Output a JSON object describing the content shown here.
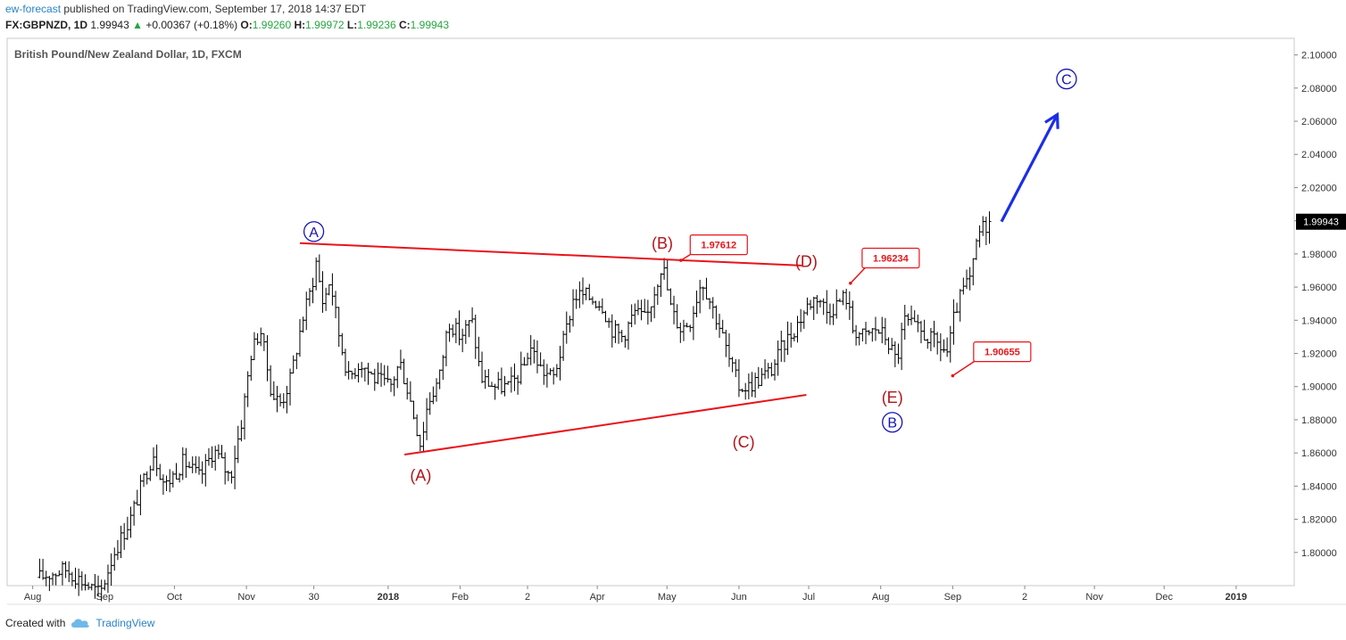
{
  "header": {
    "author": "ew-forecast",
    "published": "published on TradingView.com, September 17, 2018 14:37 EDT",
    "symbol": "FX:GBPNZD, 1D",
    "last": "1.99943",
    "change_arrow": "▲",
    "change": "+0.00367 (+0.18%)",
    "o_label": "O:",
    "o_value": "1.99260",
    "h_label": "H:",
    "h_value": "1.99972",
    "l_label": "L:",
    "l_value": "1.99236",
    "c_label": "C:",
    "c_value": "1.99943"
  },
  "footer": {
    "created_with": "Created with",
    "brand": "TradingView",
    "brand_icon": "tradingview-cloud-icon"
  },
  "colors": {
    "trendline": "#e8141a",
    "wave_red": "#b3141a",
    "wave_blue": "#1414b4",
    "arrow": "#1a2ee8",
    "bars": "#000000",
    "price_tag_bg": "#000000",
    "callout_border": "#e8141a"
  },
  "chart_data": {
    "type": "ohlc",
    "title": "British Pound/New Zealand Dollar, 1D, FXCM",
    "ylim": [
      1.78,
      2.11
    ],
    "y_ticks": [
      "2.10000",
      "2.08000",
      "2.06000",
      "2.04000",
      "2.02000",
      "2.00000",
      "1.98000",
      "1.96000",
      "1.94000",
      "1.92000",
      "1.90000",
      "1.88000",
      "1.86000",
      "1.84000",
      "1.82000",
      "1.80000"
    ],
    "x_ticks": [
      {
        "label": "Aug",
        "date": "2017-08-01",
        "bold": false
      },
      {
        "label": "Sep",
        "date": "2017-09-01",
        "bold": false
      },
      {
        "label": "Oct",
        "date": "2017-10-01",
        "bold": false
      },
      {
        "label": "Nov",
        "date": "2017-11-01",
        "bold": false
      },
      {
        "label": "30",
        "date": "2017-11-30",
        "bold": false
      },
      {
        "label": "2018",
        "date": "2018-01-01",
        "bold": true
      },
      {
        "label": "Feb",
        "date": "2018-02-01",
        "bold": false
      },
      {
        "label": "2",
        "date": "2018-03-02",
        "bold": false
      },
      {
        "label": "Apr",
        "date": "2018-04-01",
        "bold": false
      },
      {
        "label": "May",
        "date": "2018-05-01",
        "bold": false
      },
      {
        "label": "Jun",
        "date": "2018-06-01",
        "bold": false
      },
      {
        "label": "Jul",
        "date": "2018-07-01",
        "bold": false
      },
      {
        "label": "Aug",
        "date": "2018-08-01",
        "bold": false
      },
      {
        "label": "Sep",
        "date": "2018-09-01",
        "bold": false
      },
      {
        "label": "2",
        "date": "2018-10-02",
        "bold": false
      },
      {
        "label": "Nov",
        "date": "2018-11-01",
        "bold": false
      },
      {
        "label": "Dec",
        "date": "2018-12-01",
        "bold": false
      },
      {
        "label": "2019",
        "date": "2019-01-01",
        "bold": true
      }
    ],
    "price_keypoints": [
      [
        "2017-08-04",
        1.785
      ],
      [
        "2017-08-15",
        1.79
      ],
      [
        "2017-08-30",
        1.775
      ],
      [
        "2017-09-05",
        1.8
      ],
      [
        "2017-09-12",
        1.82
      ],
      [
        "2017-09-18",
        1.845
      ],
      [
        "2017-09-22",
        1.86
      ],
      [
        "2017-09-27",
        1.84
      ],
      [
        "2017-10-05",
        1.855
      ],
      [
        "2017-10-12",
        1.845
      ],
      [
        "2017-10-18",
        1.862
      ],
      [
        "2017-10-25",
        1.845
      ],
      [
        "2017-10-30",
        1.88
      ],
      [
        "2017-11-03",
        1.92
      ],
      [
        "2017-11-07",
        1.935
      ],
      [
        "2017-11-12",
        1.895
      ],
      [
        "2017-11-16",
        1.89
      ],
      [
        "2017-11-20",
        1.905
      ],
      [
        "2017-11-25",
        1.94
      ],
      [
        "2017-11-29",
        1.96
      ],
      [
        "2017-12-01",
        1.975
      ],
      [
        "2017-12-04",
        1.95
      ],
      [
        "2017-12-07",
        1.965
      ],
      [
        "2017-12-11",
        1.93
      ],
      [
        "2017-12-15",
        1.905
      ],
      [
        "2017-12-20",
        1.915
      ],
      [
        "2017-12-26",
        1.905
      ],
      [
        "2018-01-02",
        1.9
      ],
      [
        "2018-01-06",
        1.915
      ],
      [
        "2018-01-10",
        1.895
      ],
      [
        "2018-01-15",
        1.865
      ],
      [
        "2018-01-18",
        1.89
      ],
      [
        "2018-01-23",
        1.905
      ],
      [
        "2018-01-27",
        1.94
      ],
      [
        "2018-02-01",
        1.93
      ],
      [
        "2018-02-06",
        1.94
      ],
      [
        "2018-02-10",
        1.905
      ],
      [
        "2018-02-16",
        1.9
      ],
      [
        "2018-02-22",
        1.9
      ],
      [
        "2018-02-28",
        1.91
      ],
      [
        "2018-03-03",
        1.925
      ],
      [
        "2018-03-08",
        1.91
      ],
      [
        "2018-03-13",
        1.905
      ],
      [
        "2018-03-18",
        1.93
      ],
      [
        "2018-03-22",
        1.955
      ],
      [
        "2018-03-27",
        1.955
      ],
      [
        "2018-04-03",
        1.95
      ],
      [
        "2018-04-07",
        1.935
      ],
      [
        "2018-04-12",
        1.93
      ],
      [
        "2018-04-17",
        1.945
      ],
      [
        "2018-04-22",
        1.94
      ],
      [
        "2018-04-26",
        1.96
      ],
      [
        "2018-04-29",
        1.975
      ],
      [
        "2018-05-03",
        1.945
      ],
      [
        "2018-05-07",
        1.935
      ],
      [
        "2018-05-11",
        1.94
      ],
      [
        "2018-05-16",
        1.965
      ],
      [
        "2018-05-20",
        1.95
      ],
      [
        "2018-05-24",
        1.935
      ],
      [
        "2018-05-28",
        1.915
      ],
      [
        "2018-06-01",
        1.9
      ],
      [
        "2018-06-05",
        1.9
      ],
      [
        "2018-06-10",
        1.905
      ],
      [
        "2018-06-15",
        1.91
      ],
      [
        "2018-06-20",
        1.925
      ],
      [
        "2018-06-25",
        1.935
      ],
      [
        "2018-07-01",
        1.95
      ],
      [
        "2018-07-05",
        1.955
      ],
      [
        "2018-07-09",
        1.945
      ],
      [
        "2018-07-13",
        1.95
      ],
      [
        "2018-07-17",
        1.955
      ],
      [
        "2018-07-20",
        1.935
      ],
      [
        "2018-07-25",
        1.93
      ],
      [
        "2018-07-30",
        1.935
      ],
      [
        "2018-08-03",
        1.93
      ],
      [
        "2018-08-08",
        1.915
      ],
      [
        "2018-08-11",
        1.94
      ],
      [
        "2018-08-16",
        1.935
      ],
      [
        "2018-08-21",
        1.93
      ],
      [
        "2018-08-26",
        1.925
      ],
      [
        "2018-08-30",
        1.92
      ],
      [
        "2018-09-02",
        1.945
      ],
      [
        "2018-09-06",
        1.96
      ],
      [
        "2018-09-09",
        1.965
      ],
      [
        "2018-09-11",
        1.985
      ],
      [
        "2018-09-13",
        1.995
      ],
      [
        "2018-09-17",
        1.99943
      ]
    ],
    "last_price": 1.99943,
    "last_price_label": "1.99943",
    "trendlines": [
      {
        "name": "upper",
        "from": [
          "2017-11-24",
          1.9865
        ],
        "to": [
          "2018-06-28",
          1.973
        ]
      },
      {
        "name": "lower",
        "from": [
          "2018-01-08",
          1.859
        ],
        "to": [
          "2018-06-30",
          1.895
        ]
      }
    ],
    "wave_labels": [
      {
        "text": "A",
        "style": "circle-blue",
        "date": "2017-11-30",
        "y": 1.9935
      },
      {
        "text": "(A)",
        "style": "red",
        "date": "2018-01-15",
        "y": 1.8465
      },
      {
        "text": "(B)",
        "style": "red",
        "date": "2018-04-29",
        "y": 1.9865
      },
      {
        "text": "(C)",
        "style": "red",
        "date": "2018-06-03",
        "y": 1.8665
      },
      {
        "text": "(D)",
        "style": "red",
        "date": "2018-06-30",
        "y": 1.9755
      },
      {
        "text": "(E)",
        "style": "red",
        "date": "2018-08-06",
        "y": 1.8935
      },
      {
        "text": "B",
        "style": "circle-blue",
        "date": "2018-08-06",
        "y": 1.8785
      },
      {
        "text": "C",
        "style": "circle-blue",
        "date": "2018-10-20",
        "y": 2.0855
      }
    ],
    "callouts": [
      {
        "text": "1.97612",
        "date": "2018-05-07",
        "y": 1.97612,
        "box_date": "2018-05-21",
        "box_y": 1.9855
      },
      {
        "text": "1.96234",
        "date": "2018-07-19",
        "y": 1.96234,
        "box_date": "2018-08-03",
        "box_y": 1.9775
      },
      {
        "text": "1.90655",
        "date": "2018-09-01",
        "y": 1.90655,
        "box_date": "2018-09-20",
        "box_y": 1.921
      }
    ],
    "projection_arrow": {
      "from": [
        "2018-09-22",
        1.9995
      ],
      "to": [
        "2018-10-16",
        2.064
      ]
    }
  }
}
